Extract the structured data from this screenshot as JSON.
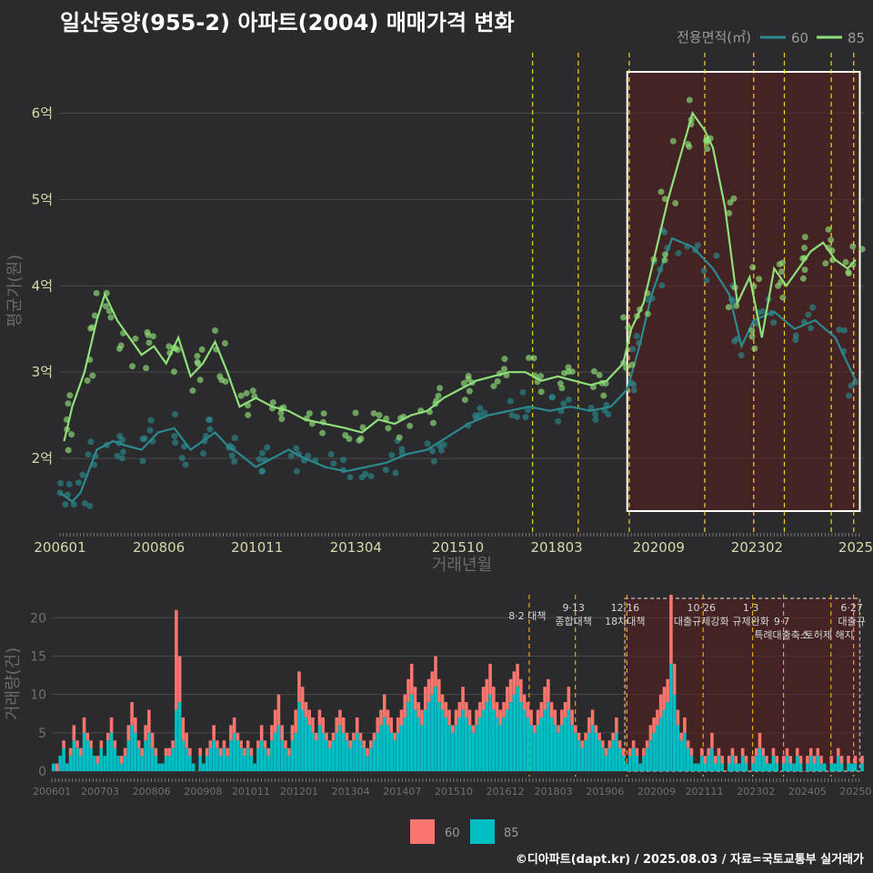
{
  "title": "일산동양(955-2) 아파트(2004) 매매가격 변화",
  "credit": "©디아파트(dapt.kr) / 2025.08.03 / 자료=국토교통부 실거래가",
  "colors": {
    "bg": "#2b2b2d",
    "grid": "#4a4a4a",
    "s60": "#2a8a8e",
    "s85": "#8fe07a",
    "bar60": "#f8766d",
    "bar85": "#00bfc4",
    "policy": "#ffd21f",
    "shade": "#5a1e1e"
  },
  "chart_data": [
    {
      "type": "line",
      "ylabel": "평균가(원)",
      "xlabel": "거래년월",
      "ylim": [
        1.2,
        6.7
      ],
      "yticks": [
        {
          "v": 2,
          "label": "2억"
        },
        {
          "v": 3,
          "label": "3억"
        },
        {
          "v": 4,
          "label": "4억"
        },
        {
          "v": 5,
          "label": "5억"
        },
        {
          "v": 6,
          "label": "6억"
        }
      ],
      "xlim": [
        2006.0,
        2025.7
      ],
      "xticks": [
        {
          "v": 2006.0,
          "label": "200601"
        },
        {
          "v": 2008.42,
          "label": "200806"
        },
        {
          "v": 2010.83,
          "label": "201011"
        },
        {
          "v": 2013.25,
          "label": "201304"
        },
        {
          "v": 2015.75,
          "label": "201510"
        },
        {
          "v": 2018.17,
          "label": "201803"
        },
        {
          "v": 2020.67,
          "label": "202009"
        },
        {
          "v": 2023.08,
          "label": "202302"
        },
        {
          "v": 2025.5,
          "label": "2025"
        }
      ],
      "legend": {
        "title": "전용면적(㎡)",
        "position": "top-right",
        "entries": [
          "60",
          "85"
        ]
      },
      "policy_lines": [
        2017.58,
        2018.7,
        2019.95,
        2021.8,
        2023.0,
        2023.75,
        2024.9,
        2025.45
      ],
      "highlight": [
        2019.9,
        2025.6
      ],
      "series": [
        {
          "name": "60",
          "points": [
            [
              2006.0,
              1.6
            ],
            [
              2006.3,
              1.5
            ],
            [
              2006.5,
              1.6
            ],
            [
              2006.7,
              1.85
            ],
            [
              2006.9,
              2.1
            ],
            [
              2007.3,
              2.2
            ],
            [
              2007.6,
              2.15
            ],
            [
              2008.0,
              2.1
            ],
            [
              2008.4,
              2.3
            ],
            [
              2008.8,
              2.35
            ],
            [
              2009.2,
              2.1
            ],
            [
              2009.5,
              2.2
            ],
            [
              2009.8,
              2.3
            ],
            [
              2010.1,
              2.15
            ],
            [
              2010.4,
              2.05
            ],
            [
              2010.8,
              1.9
            ],
            [
              2011.2,
              2.0
            ],
            [
              2011.6,
              2.1
            ],
            [
              2012.0,
              2.0
            ],
            [
              2012.5,
              1.9
            ],
            [
              2013.0,
              1.85
            ],
            [
              2013.5,
              1.9
            ],
            [
              2014.0,
              1.95
            ],
            [
              2014.5,
              2.05
            ],
            [
              2015.0,
              2.1
            ],
            [
              2015.5,
              2.25
            ],
            [
              2016.0,
              2.4
            ],
            [
              2016.5,
              2.5
            ],
            [
              2017.0,
              2.55
            ],
            [
              2017.5,
              2.6
            ],
            [
              2018.0,
              2.55
            ],
            [
              2018.5,
              2.6
            ],
            [
              2019.0,
              2.55
            ],
            [
              2019.5,
              2.6
            ],
            [
              2019.9,
              2.8
            ],
            [
              2020.2,
              3.3
            ],
            [
              2020.5,
              3.9
            ],
            [
              2020.8,
              4.3
            ],
            [
              2021.0,
              4.55
            ],
            [
              2021.5,
              4.45
            ],
            [
              2022.0,
              4.2
            ],
            [
              2022.4,
              3.9
            ],
            [
              2022.7,
              3.3
            ],
            [
              2023.0,
              3.6
            ],
            [
              2023.5,
              3.7
            ],
            [
              2024.0,
              3.5
            ],
            [
              2024.5,
              3.6
            ],
            [
              2025.0,
              3.4
            ],
            [
              2025.5,
              2.9
            ]
          ]
        },
        {
          "name": "85",
          "points": [
            [
              2006.1,
              2.2
            ],
            [
              2006.3,
              2.6
            ],
            [
              2006.6,
              3.0
            ],
            [
              2006.9,
              3.6
            ],
            [
              2007.1,
              3.9
            ],
            [
              2007.4,
              3.6
            ],
            [
              2007.7,
              3.4
            ],
            [
              2008.0,
              3.2
            ],
            [
              2008.3,
              3.3
            ],
            [
              2008.6,
              3.1
            ],
            [
              2008.9,
              3.4
            ],
            [
              2009.2,
              2.95
            ],
            [
              2009.5,
              3.1
            ],
            [
              2009.8,
              3.35
            ],
            [
              2010.1,
              3.0
            ],
            [
              2010.4,
              2.6
            ],
            [
              2010.8,
              2.7
            ],
            [
              2011.2,
              2.6
            ],
            [
              2011.6,
              2.55
            ],
            [
              2012.0,
              2.45
            ],
            [
              2012.5,
              2.4
            ],
            [
              2013.0,
              2.35
            ],
            [
              2013.4,
              2.3
            ],
            [
              2013.8,
              2.45
            ],
            [
              2014.2,
              2.4
            ],
            [
              2014.6,
              2.5
            ],
            [
              2015.0,
              2.55
            ],
            [
              2015.4,
              2.7
            ],
            [
              2015.8,
              2.8
            ],
            [
              2016.2,
              2.9
            ],
            [
              2016.6,
              2.95
            ],
            [
              2017.0,
              3.0
            ],
            [
              2017.4,
              3.0
            ],
            [
              2017.8,
              2.9
            ],
            [
              2018.2,
              2.95
            ],
            [
              2018.6,
              2.9
            ],
            [
              2019.0,
              2.85
            ],
            [
              2019.4,
              2.9
            ],
            [
              2019.8,
              3.1
            ],
            [
              2020.0,
              3.5
            ],
            [
              2020.3,
              3.8
            ],
            [
              2020.6,
              4.4
            ],
            [
              2020.9,
              5.0
            ],
            [
              2021.2,
              5.5
            ],
            [
              2021.5,
              6.0
            ],
            [
              2021.8,
              5.8
            ],
            [
              2022.0,
              5.6
            ],
            [
              2022.3,
              4.9
            ],
            [
              2022.6,
              3.8
            ],
            [
              2022.9,
              4.1
            ],
            [
              2023.2,
              3.4
            ],
            [
              2023.5,
              4.2
            ],
            [
              2023.8,
              4.0
            ],
            [
              2024.1,
              4.2
            ],
            [
              2024.4,
              4.4
            ],
            [
              2024.7,
              4.5
            ],
            [
              2025.0,
              4.3
            ],
            [
              2025.3,
              4.2
            ],
            [
              2025.5,
              4.3
            ]
          ]
        }
      ]
    },
    {
      "type": "bar",
      "stacked": true,
      "ylabel": "거래량(건)",
      "ylim": [
        0,
        23
      ],
      "yticks": [
        0,
        5,
        10,
        15,
        20
      ],
      "xticks": [
        {
          "v": 2006.0,
          "label": "200601"
        },
        {
          "v": 2007.17,
          "label": "200703"
        },
        {
          "v": 2008.42,
          "label": "200806"
        },
        {
          "v": 2009.67,
          "label": "200908"
        },
        {
          "v": 2010.83,
          "label": "201011"
        },
        {
          "v": 2012.0,
          "label": "201201"
        },
        {
          "v": 2013.25,
          "label": "201304"
        },
        {
          "v": 2014.5,
          "label": "201407"
        },
        {
          "v": 2015.75,
          "label": "201510"
        },
        {
          "v": 2017.0,
          "label": "201612"
        },
        {
          "v": 2018.17,
          "label": "201803"
        },
        {
          "v": 2019.42,
          "label": "201906"
        },
        {
          "v": 2020.67,
          "label": "202009"
        },
        {
          "v": 2021.83,
          "label": "202111"
        },
        {
          "v": 2023.08,
          "label": "202302"
        },
        {
          "v": 2024.33,
          "label": "202405"
        },
        {
          "v": 2025.5,
          "label": "20250"
        }
      ],
      "legend": {
        "position": "bottom",
        "entries": [
          "60",
          "85"
        ]
      },
      "annotations": [
        {
          "x": 2017.58,
          "lines": [
            "8·2 대책"
          ]
        },
        {
          "x": 2018.7,
          "lines": [
            "9·13",
            "종합대책"
          ]
        },
        {
          "x": 2019.95,
          "lines": [
            "12·16",
            "18차대책"
          ]
        },
        {
          "x": 2021.8,
          "lines": [
            "10·26",
            "대출규제강화"
          ]
        },
        {
          "x": 2023.0,
          "lines": [
            "1·3",
            "규제완화"
          ]
        },
        {
          "x": 2023.75,
          "lines": [
            "",
            "9·7",
            "특례대출축소"
          ]
        },
        {
          "x": 2024.9,
          "lines": [
            "",
            "",
            "토허제 해지"
          ]
        },
        {
          "x": 2025.45,
          "lines": [
            "6·27",
            "대출규"
          ]
        }
      ],
      "series": [
        {
          "name": "85",
          "values": [
            1,
            0,
            2,
            3,
            1,
            2,
            4,
            3,
            2,
            5,
            4,
            3,
            2,
            1,
            3,
            2,
            4,
            5,
            3,
            2,
            1,
            2,
            4,
            6,
            5,
            3,
            2,
            4,
            5,
            3,
            2,
            1,
            1,
            2,
            2,
            3,
            8,
            9,
            4,
            3,
            2,
            1,
            0,
            2,
            1,
            2,
            3,
            4,
            3,
            2,
            3,
            2,
            4,
            5,
            4,
            3,
            2,
            3,
            2,
            1,
            3,
            4,
            3,
            2,
            4,
            5,
            6,
            4,
            3,
            2,
            4,
            5,
            9,
            8,
            7,
            6,
            5,
            4,
            6,
            5,
            4,
            3,
            4,
            5,
            6,
            5,
            4,
            3,
            4,
            5,
            4,
            3,
            2,
            3,
            4,
            5,
            6,
            7,
            6,
            5,
            4,
            5,
            6,
            7,
            9,
            10,
            8,
            7,
            6,
            8,
            9,
            10,
            11,
            9,
            8,
            7,
            6,
            5,
            6,
            7,
            8,
            7,
            6,
            5,
            6,
            7,
            8,
            9,
            10,
            8,
            7,
            6,
            7,
            8,
            9,
            10,
            11,
            9,
            8,
            7,
            6,
            5,
            6,
            7,
            8,
            9,
            7,
            6,
            5,
            6,
            7,
            8,
            6,
            5,
            4,
            3,
            4,
            5,
            6,
            5,
            4,
            3,
            2,
            3,
            4,
            5,
            3,
            2,
            1,
            2,
            3,
            2,
            1,
            2,
            3,
            4,
            5,
            6,
            7,
            8,
            9,
            14,
            10,
            6,
            4,
            5,
            3,
            2,
            1,
            1,
            2,
            1,
            2,
            3,
            1,
            2,
            1,
            0,
            1,
            2,
            1,
            1,
            2,
            1,
            0,
            1,
            2,
            3,
            2,
            1,
            1,
            2,
            1,
            0,
            1,
            2,
            1,
            1,
            2,
            1,
            0,
            1,
            2,
            1,
            2,
            1,
            1,
            0,
            1,
            1,
            2,
            1,
            0,
            1,
            1,
            1,
            0,
            1
          ]
        },
        {
          "name": "60",
          "values": [
            0,
            1,
            0,
            1,
            0,
            1,
            2,
            1,
            1,
            2,
            1,
            1,
            0,
            1,
            1,
            0,
            1,
            2,
            1,
            0,
            1,
            1,
            2,
            3,
            2,
            1,
            1,
            2,
            3,
            2,
            1,
            0,
            0,
            1,
            1,
            1,
            13,
            6,
            3,
            2,
            1,
            0,
            0,
            1,
            0,
            1,
            1,
            2,
            1,
            1,
            1,
            1,
            2,
            2,
            1,
            1,
            1,
            1,
            1,
            0,
            1,
            2,
            1,
            1,
            2,
            3,
            4,
            2,
            1,
            1,
            2,
            3,
            4,
            3,
            2,
            2,
            2,
            1,
            2,
            2,
            1,
            1,
            1,
            2,
            2,
            2,
            1,
            1,
            1,
            2,
            1,
            1,
            1,
            1,
            1,
            2,
            2,
            3,
            2,
            2,
            1,
            2,
            2,
            3,
            3,
            4,
            3,
            2,
            2,
            3,
            3,
            3,
            4,
            3,
            2,
            2,
            2,
            1,
            2,
            2,
            3,
            2,
            2,
            1,
            2,
            2,
            3,
            3,
            4,
            3,
            2,
            2,
            2,
            3,
            3,
            3,
            3,
            3,
            2,
            2,
            2,
            1,
            2,
            2,
            3,
            3,
            2,
            2,
            1,
            2,
            2,
            3,
            2,
            1,
            1,
            1,
            1,
            2,
            2,
            1,
            1,
            1,
            1,
            1,
            1,
            2,
            1,
            1,
            0,
            1,
            1,
            1,
            0,
            1,
            1,
            2,
            2,
            2,
            3,
            3,
            3,
            9,
            4,
            2,
            1,
            2,
            1,
            1,
            0,
            0,
            1,
            1,
            1,
            2,
            1,
            1,
            1,
            0,
            1,
            1,
            1,
            0,
            1,
            1,
            0,
            1,
            1,
            2,
            1,
            1,
            0,
            1,
            1,
            0,
            1,
            1,
            1,
            0,
            1,
            1,
            0,
            1,
            1,
            1,
            1,
            1,
            0,
            0,
            1,
            0,
            1,
            1,
            0,
            1,
            0,
            1,
            0,
            1
          ]
        }
      ]
    }
  ]
}
